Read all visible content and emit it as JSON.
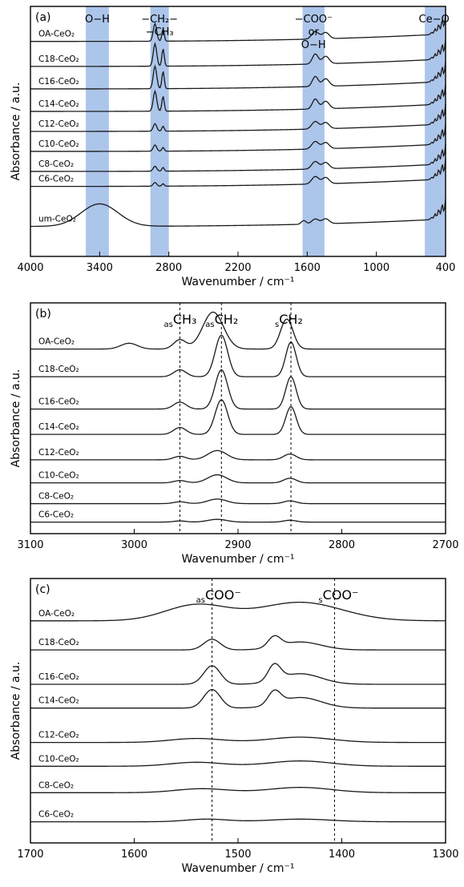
{
  "chart_data": [
    {
      "panel": "(a)",
      "type": "line",
      "xlabel": "Wavenumber / cm⁻¹",
      "ylabel": "Absorbance / a.u.",
      "xlim": [
        4000,
        400
      ],
      "x_reversed": true,
      "xticks": [
        4000,
        3400,
        2800,
        2200,
        1600,
        1000,
        400
      ],
      "bands": [
        {
          "label": "O−H",
          "from": 3520,
          "to": 3320,
          "color": "#9dbbe6"
        },
        {
          "label": "−CH₂− −CH₃",
          "from": 2960,
          "to": 2800,
          "color": "#9dbbe6"
        },
        {
          "label": "−COO⁻ or O−H",
          "from": 1640,
          "to": 1450,
          "color": "#9dbbe6"
        },
        {
          "label": "Ce−O",
          "from": 580,
          "to": 400,
          "color": "#9dbbe6"
        }
      ],
      "band_labels": [
        {
          "lines": [
            "O−H"
          ],
          "x": 3420
        },
        {
          "lines": [
            "−CH₂−",
            "−CH₃"
          ],
          "x": 2880
        },
        {
          "lines": [
            "−COO⁻",
            "or",
            "O−H"
          ],
          "x": 1545
        },
        {
          "lines": [
            "Ce−O"
          ],
          "x": 500
        }
      ],
      "series": [
        {
          "name": "OA-CeO₂",
          "offset": 0.86,
          "peaks": [
            [
              2920,
              0.07,
              15
            ],
            [
              2850,
              0.05,
              10
            ],
            [
              1530,
              0.03,
              30
            ],
            [
              1440,
              0.025,
              30
            ]
          ]
        },
        {
          "name": "C18-CeO₂",
          "offset": 0.76,
          "peaks": [
            [
              2920,
              0.09,
              15
            ],
            [
              2850,
              0.07,
              10
            ],
            [
              1530,
              0.04,
              25
            ],
            [
              1440,
              0.03,
              30
            ]
          ]
        },
        {
          "name": "C16-CeO₂",
          "offset": 0.67,
          "peaks": [
            [
              2920,
              0.09,
              15
            ],
            [
              2850,
              0.07,
              10
            ],
            [
              1530,
              0.04,
              25
            ],
            [
              1440,
              0.03,
              30
            ]
          ]
        },
        {
          "name": "C14-CeO₂",
          "offset": 0.58,
          "peaks": [
            [
              2920,
              0.08,
              15
            ],
            [
              2850,
              0.06,
              10
            ],
            [
              1530,
              0.04,
              25
            ],
            [
              1440,
              0.03,
              30
            ]
          ]
        },
        {
          "name": "C12-CeO₂",
          "offset": 0.5,
          "peaks": [
            [
              2920,
              0.03,
              15
            ],
            [
              2850,
              0.02,
              10
            ],
            [
              1530,
              0.03,
              30
            ],
            [
              1440,
              0.025,
              30
            ]
          ]
        },
        {
          "name": "C10-CeO₂",
          "offset": 0.42,
          "peaks": [
            [
              2920,
              0.025,
              15
            ],
            [
              2850,
              0.015,
              10
            ],
            [
              1530,
              0.03,
              30
            ],
            [
              1440,
              0.025,
              30
            ]
          ]
        },
        {
          "name": "C8-CeO₂",
          "offset": 0.34,
          "peaks": [
            [
              2920,
              0.02,
              15
            ],
            [
              2850,
              0.015,
              10
            ],
            [
              1530,
              0.03,
              30
            ],
            [
              1440,
              0.025,
              30
            ]
          ]
        },
        {
          "name": "C6-CeO₂",
          "offset": 0.28,
          "peaks": [
            [
              2920,
              0.015,
              15
            ],
            [
              2850,
              0.01,
              10
            ],
            [
              1530,
              0.03,
              30
            ],
            [
              1440,
              0.025,
              30
            ]
          ]
        },
        {
          "name": "um-CeO₂",
          "offset": 0.12,
          "peaks": [
            [
              3400,
              0.09,
              160
            ],
            [
              1630,
              0.015,
              20
            ],
            [
              1530,
              0.02,
              30
            ],
            [
              1440,
              0.02,
              30
            ]
          ]
        }
      ]
    },
    {
      "panel": "(b)",
      "type": "line",
      "xlabel": "Wavenumber / cm⁻¹",
      "ylabel": "Absorbance / a.u.",
      "xlim": [
        3100,
        2700
      ],
      "x_reversed": true,
      "xticks": [
        3100,
        3000,
        2900,
        2800,
        2700
      ],
      "reference_lines": [
        {
          "x": 2956,
          "label_sub": "as",
          "label_main": "CH₃"
        },
        {
          "x": 2916,
          "label_sub": "as",
          "label_main": "CH₂"
        },
        {
          "x": 2849,
          "label_sub": "s",
          "label_main": "CH₂"
        }
      ],
      "series": [
        {
          "name": "OA-CeO₂",
          "offset": 0.8,
          "peaks": [
            [
              3005,
              0.025,
              8
            ],
            [
              2956,
              0.04,
              6
            ],
            [
              2924,
              0.16,
              10
            ],
            [
              2853,
              0.13,
              6
            ]
          ]
        },
        {
          "name": "C18-CeO₂",
          "offset": 0.68,
          "peaks": [
            [
              2956,
              0.03,
              6
            ],
            [
              2916,
              0.18,
              6
            ],
            [
              2849,
              0.15,
              5
            ]
          ]
        },
        {
          "name": "C16-CeO₂",
          "offset": 0.54,
          "peaks": [
            [
              2956,
              0.03,
              6
            ],
            [
              2916,
              0.17,
              6
            ],
            [
              2849,
              0.14,
              5
            ]
          ]
        },
        {
          "name": "C14-CeO₂",
          "offset": 0.43,
          "peaks": [
            [
              2956,
              0.03,
              6
            ],
            [
              2916,
              0.15,
              6
            ],
            [
              2849,
              0.12,
              5
            ]
          ]
        },
        {
          "name": "C12-CeO₂",
          "offset": 0.32,
          "peaks": [
            [
              2956,
              0.015,
              6
            ],
            [
              2920,
              0.04,
              9
            ],
            [
              2850,
              0.025,
              6
            ]
          ]
        },
        {
          "name": "C10-CeO₂",
          "offset": 0.22,
          "peaks": [
            [
              2956,
              0.01,
              6
            ],
            [
              2920,
              0.035,
              9
            ],
            [
              2850,
              0.02,
              6
            ]
          ]
        },
        {
          "name": "C8-CeO₂",
          "offset": 0.13,
          "peaks": [
            [
              2956,
              0.008,
              6
            ],
            [
              2920,
              0.02,
              9
            ],
            [
              2850,
              0.012,
              6
            ]
          ]
        },
        {
          "name": "C6-CeO₂",
          "offset": 0.05,
          "peaks": [
            [
              2956,
              0.005,
              6
            ],
            [
              2920,
              0.012,
              9
            ],
            [
              2850,
              0.008,
              6
            ]
          ]
        }
      ]
    },
    {
      "panel": "(c)",
      "type": "line",
      "xlabel": "Wavenumber / cm⁻¹",
      "ylabel": "Absorbance / a.u.",
      "xlim": [
        1700,
        1300
      ],
      "x_reversed": true,
      "xticks": [
        1700,
        1600,
        1500,
        1400,
        1300
      ],
      "reference_lines": [
        {
          "x": 1525,
          "label_sub": "as",
          "label_main": "COO⁻"
        },
        {
          "x": 1407,
          "label_sub": "s",
          "label_main": "COO⁻"
        }
      ],
      "series": [
        {
          "name": "OA-CeO₂",
          "offset": 0.84,
          "peaks": [
            [
              1540,
              0.06,
              30
            ],
            [
              1440,
              0.07,
              40
            ]
          ]
        },
        {
          "name": "C18-CeO₂",
          "offset": 0.73,
          "peaks": [
            [
              1525,
              0.04,
              8
            ],
            [
              1465,
              0.04,
              6
            ],
            [
              1440,
              0.03,
              20
            ]
          ]
        },
        {
          "name": "C16-CeO₂",
          "offset": 0.6,
          "peaks": [
            [
              1525,
              0.07,
              8
            ],
            [
              1465,
              0.06,
              6
            ],
            [
              1440,
              0.04,
              20
            ]
          ]
        },
        {
          "name": "C14-CeO₂",
          "offset": 0.51,
          "peaks": [
            [
              1525,
              0.07,
              8
            ],
            [
              1465,
              0.05,
              6
            ],
            [
              1440,
              0.04,
              20
            ]
          ]
        },
        {
          "name": "C12-CeO₂",
          "offset": 0.38,
          "peaks": [
            [
              1540,
              0.015,
              25
            ],
            [
              1440,
              0.02,
              30
            ]
          ]
        },
        {
          "name": "C10-CeO₂",
          "offset": 0.29,
          "peaks": [
            [
              1540,
              0.015,
              25
            ],
            [
              1440,
              0.02,
              30
            ]
          ]
        },
        {
          "name": "C8-CeO₂",
          "offset": 0.19,
          "peaks": [
            [
              1535,
              0.015,
              25
            ],
            [
              1440,
              0.02,
              30
            ]
          ]
        },
        {
          "name": "C6-CeO₂",
          "offset": 0.08,
          "peaks": [
            [
              1530,
              0.01,
              20
            ],
            [
              1440,
              0.01,
              30
            ]
          ]
        }
      ]
    }
  ]
}
